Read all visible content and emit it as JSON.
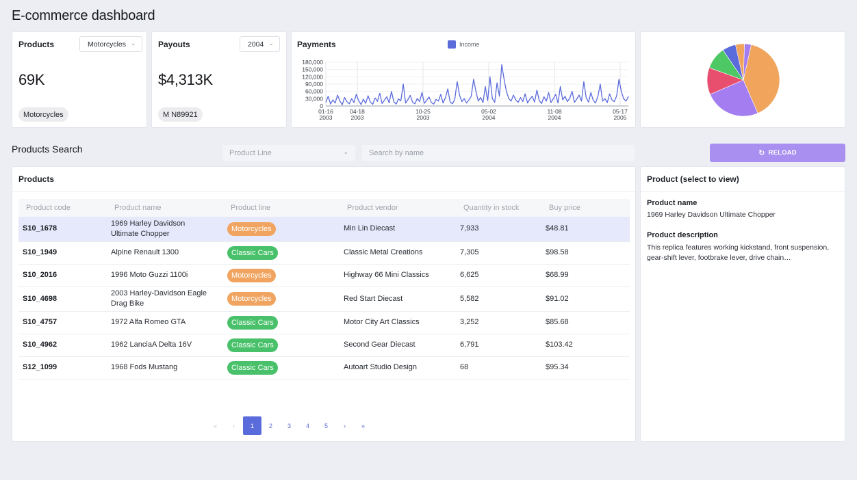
{
  "page": {
    "title": "E-commerce dashboard"
  },
  "products_card": {
    "title": "Products",
    "select_value": "Motorcycles",
    "value": "69K",
    "chip": "Motorcycles"
  },
  "payouts_card": {
    "title": "Payouts",
    "select_value": "2004",
    "value": "$4,313K",
    "chip": "M N89921"
  },
  "payments_card": {
    "title": "Payments",
    "chart_data": {
      "type": "line",
      "series": [
        {
          "name": "Income",
          "color": "#5b6bdc"
        }
      ],
      "yticks": [
        "180,000",
        "150,000",
        "120,000",
        "90,000",
        "60,000",
        "30,000",
        "0"
      ],
      "ylim": [
        0,
        180000
      ],
      "xticks": [
        {
          "date": "01-16",
          "year": "2003"
        },
        {
          "date": "04-18",
          "year": "2003"
        },
        {
          "date": "10-25",
          "year": "2003"
        },
        {
          "date": "05-02",
          "year": "2004"
        },
        {
          "date": "11-08",
          "year": "2004"
        },
        {
          "date": "05-17",
          "year": "2005"
        }
      ],
      "values": [
        15000,
        40000,
        8000,
        25000,
        12000,
        45000,
        20000,
        5000,
        35000,
        18000,
        9000,
        30000,
        14000,
        48000,
        22000,
        6000,
        28000,
        11000,
        42000,
        16000,
        7000,
        33000,
        19000,
        52000,
        10000,
        24000,
        38000,
        13000,
        60000,
        17000,
        8000,
        29000,
        21000,
        90000,
        12000,
        26000,
        44000,
        15000,
        9000,
        31000,
        18000,
        56000,
        11000,
        23000,
        37000,
        14000,
        8000,
        27000,
        20000,
        48000,
        12000,
        34000,
        70000,
        16000,
        9000,
        28000,
        100000,
        45000,
        18000,
        30000,
        12000,
        25000,
        40000,
        110000,
        60000,
        20000,
        35000,
        14000,
        80000,
        22000,
        120000,
        30000,
        15000,
        95000,
        40000,
        170000,
        110000,
        60000,
        30000,
        20000,
        45000,
        25000,
        15000,
        35000,
        18000,
        50000,
        12000,
        28000,
        40000,
        16000,
        65000,
        22000,
        10000,
        38000,
        20000,
        55000,
        14000,
        30000,
        48000,
        12000,
        80000,
        25000,
        40000,
        18000,
        32000,
        60000,
        15000,
        28000,
        45000,
        20000,
        100000,
        35000,
        16000,
        55000,
        24000,
        12000,
        40000,
        90000,
        20000,
        30000,
        14000,
        50000,
        25000,
        18000,
        42000,
        110000,
        60000,
        30000,
        20000,
        40000
      ]
    }
  },
  "pie_chart": {
    "chart_data": {
      "type": "pie",
      "slices": [
        {
          "value": 40,
          "color": "#f0a45c"
        },
        {
          "value": 25,
          "color": "#a47ef0"
        },
        {
          "value": 12,
          "color": "#e84e6e"
        },
        {
          "value": 10,
          "color": "#4ec865"
        },
        {
          "value": 6,
          "color": "#5a6bdc"
        },
        {
          "value": 4,
          "color": "#f0a45c"
        },
        {
          "value": 3,
          "color": "#a47ef0"
        }
      ]
    }
  },
  "search": {
    "title": "Products Search",
    "product_line_placeholder": "Product Line",
    "name_placeholder": "Search by name",
    "reload_label": "RELOAD"
  },
  "table": {
    "title": "Products",
    "columns": [
      "Product code",
      "Product name",
      "Product line",
      "Product vendor",
      "Quantity in stock",
      "Buy price"
    ],
    "rows": [
      {
        "code": "S10_1678",
        "name": "1969 Harley Davidson Ultimate Chopper",
        "line": "Motorcycles",
        "vendor": "Min Lin Diecast",
        "qty": "7,933",
        "price": "$48.81"
      },
      {
        "code": "S10_1949",
        "name": "Alpine Renault 1300",
        "line": "Classic Cars",
        "vendor": "Classic Metal Creations",
        "qty": "7,305",
        "price": "$98.58"
      },
      {
        "code": "S10_2016",
        "name": "1996 Moto Guzzi 1100i",
        "line": "Motorcycles",
        "vendor": "Highway 66 Mini Classics",
        "qty": "6,625",
        "price": "$68.99"
      },
      {
        "code": "S10_4698",
        "name": "2003 Harley-Davidson Eagle Drag Bike",
        "line": "Motorcycles",
        "vendor": "Red Start Diecast",
        "qty": "5,582",
        "price": "$91.02"
      },
      {
        "code": "S10_4757",
        "name": "1972 Alfa Romeo GTA",
        "line": "Classic Cars",
        "vendor": "Motor City Art Classics",
        "qty": "3,252",
        "price": "$85.68"
      },
      {
        "code": "S10_4962",
        "name": "1962 LanciaA Delta 16V",
        "line": "Classic Cars",
        "vendor": "Second Gear Diecast",
        "qty": "6,791",
        "price": "$103.42"
      },
      {
        "code": "S12_1099",
        "name": "1968 Fods Mustang",
        "line": "Classic Cars",
        "vendor": "Autoart Studio Design",
        "qty": "68",
        "price": "$95.34"
      }
    ],
    "pagination": {
      "first": "«",
      "prev": "‹",
      "pages": [
        "1",
        "2",
        "3",
        "4",
        "5"
      ],
      "next": "›",
      "last": "»",
      "active_page": "1"
    }
  },
  "detail": {
    "title": "Product (select to view)",
    "name_label": "Product name",
    "name_value": "1969 Harley Davidson Ultimate Chopper",
    "description_label": "Product description",
    "description_value": "This replica features working kickstand, front suspension, gear-shift lever, footbrake lever, drive chain…"
  },
  "colors": {
    "accent": "#5a6bdc",
    "reload": "#a88ff0",
    "moto": "#f0a460",
    "cars": "#48c16a"
  }
}
